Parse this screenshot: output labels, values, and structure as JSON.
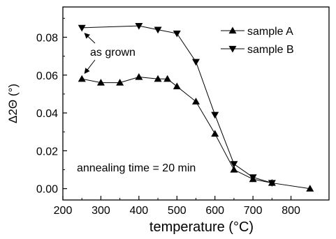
{
  "chart_data": {
    "type": "line",
    "xlabel": "temperature (°C)",
    "ylabel": "Δ2Θ (°)",
    "xlim": [
      200,
      900
    ],
    "ylim": [
      -0.006,
      0.096
    ],
    "xticks": [
      200,
      300,
      400,
      500,
      600,
      700,
      800
    ],
    "yticks": [
      0.0,
      0.02,
      0.04,
      0.06,
      0.08
    ],
    "xtick_labels": [
      "200",
      "300",
      "400",
      "500",
      "600",
      "700",
      "800"
    ],
    "ytick_labels": [
      "0.00",
      "0.02",
      "0.04",
      "0.06",
      "0.08"
    ],
    "grid": false,
    "legend_position": "top-right",
    "series": [
      {
        "name": "sample A",
        "marker": "triangle-up",
        "x": [
          250,
          300,
          350,
          400,
          450,
          475,
          500,
          550,
          600,
          650,
          700,
          750,
          850
        ],
        "y": [
          0.058,
          0.056,
          0.056,
          0.059,
          0.058,
          0.058,
          0.054,
          0.046,
          0.029,
          0.01,
          0.005,
          0.003,
          0.0
        ]
      },
      {
        "name": "sample B",
        "marker": "triangle-down",
        "x": [
          250,
          400,
          450,
          500,
          550,
          600,
          650,
          700,
          750
        ],
        "y": [
          0.085,
          0.086,
          0.084,
          0.082,
          0.067,
          0.039,
          0.013,
          0.006,
          0.003
        ]
      }
    ],
    "annotations": [
      {
        "text": "as grown"
      },
      {
        "text": "annealing time = 20 min"
      }
    ]
  }
}
